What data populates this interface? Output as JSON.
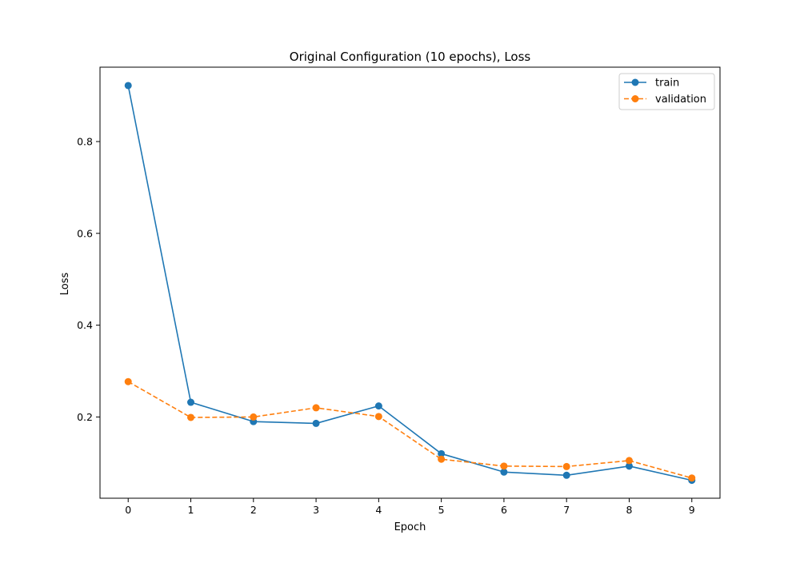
{
  "chart_data": {
    "type": "line",
    "title": "Original Configuration (10 epochs), Loss",
    "xlabel": "Epoch",
    "ylabel": "Loss",
    "x": [
      0,
      1,
      2,
      3,
      4,
      5,
      6,
      7,
      8,
      9
    ],
    "xlim": [
      -0.45,
      9.45
    ],
    "ylim": [
      0.023,
      0.962
    ],
    "xticks": [
      0,
      1,
      2,
      3,
      4,
      5,
      6,
      7,
      8,
      9
    ],
    "xtick_labels": [
      "0",
      "1",
      "2",
      "3",
      "4",
      "5",
      "6",
      "7",
      "8",
      "9"
    ],
    "yticks": [
      0.2,
      0.4,
      0.6,
      0.8
    ],
    "ytick_labels": [
      "0.2",
      "0.4",
      "0.6",
      "0.8"
    ],
    "grid": false,
    "legend": {
      "position": "top-right"
    },
    "series": [
      {
        "name": "train",
        "color": "#1f77b4",
        "linestyle": "solid",
        "marker": "circle",
        "values": [
          0.922,
          0.232,
          0.19,
          0.186,
          0.224,
          0.12,
          0.08,
          0.073,
          0.093,
          0.062
        ]
      },
      {
        "name": "validation",
        "color": "#ff7f0e",
        "linestyle": "dashed",
        "marker": "circle",
        "values": [
          0.277,
          0.199,
          0.2,
          0.22,
          0.201,
          0.108,
          0.093,
          0.092,
          0.105,
          0.067
        ]
      }
    ]
  }
}
